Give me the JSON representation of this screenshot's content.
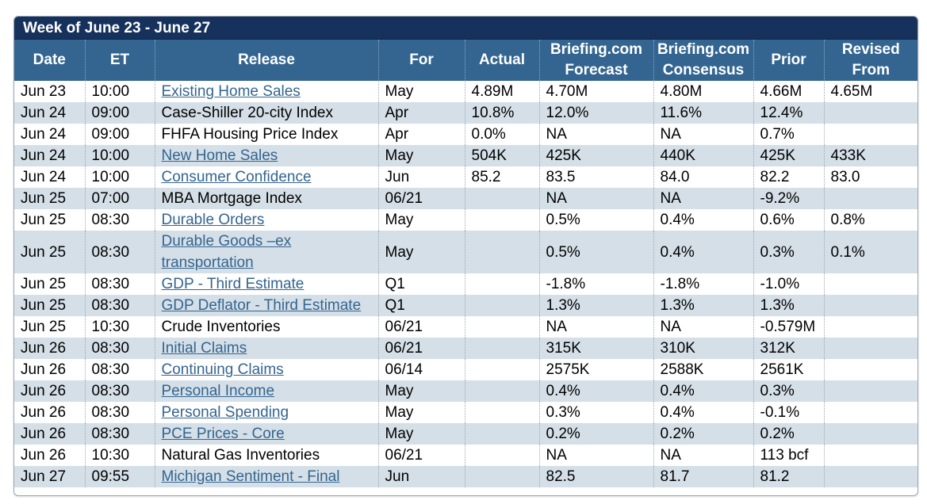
{
  "title": "Week of June 23 - June 27",
  "columns": {
    "date": "Date",
    "et": "ET",
    "release": "Release",
    "for": "For",
    "actual": "Actual",
    "forecast_l1": "Briefing.com",
    "forecast_l2": "Forecast",
    "consensus_l1": "Briefing.com",
    "consensus_l2": "Consensus",
    "prior": "Prior",
    "revised_l1": "Revised",
    "revised_l2": "From"
  },
  "rows": [
    {
      "date": "Jun 23",
      "et": "10:00",
      "release": "Existing Home Sales",
      "link": true,
      "for": "May",
      "actual": "4.89M",
      "forecast": "4.70M",
      "consensus": "4.80M",
      "prior": "4.66M",
      "revised": "4.65M"
    },
    {
      "date": "Jun 24",
      "et": "09:00",
      "release": "Case-Shiller 20-city Index",
      "link": false,
      "for": "Apr",
      "actual": "10.8%",
      "forecast": "12.0%",
      "consensus": "11.6%",
      "prior": "12.4%",
      "revised": ""
    },
    {
      "date": "Jun 24",
      "et": "09:00",
      "release": "FHFA Housing Price Index",
      "link": false,
      "for": "Apr",
      "actual": "0.0%",
      "forecast": "NA",
      "consensus": "NA",
      "prior": "0.7%",
      "revised": ""
    },
    {
      "date": "Jun 24",
      "et": "10:00",
      "release": "New Home Sales",
      "link": true,
      "for": "May",
      "actual": "504K",
      "forecast": "425K",
      "consensus": "440K",
      "prior": "425K",
      "revised": "433K"
    },
    {
      "date": "Jun 24",
      "et": "10:00",
      "release": "Consumer Confidence",
      "link": true,
      "for": "Jun",
      "actual": "85.2",
      "forecast": "83.5",
      "consensus": "84.0",
      "prior": "82.2",
      "revised": "83.0"
    },
    {
      "date": "Jun 25",
      "et": "07:00",
      "release": "MBA Mortgage Index",
      "link": false,
      "for": "06/21",
      "actual": "",
      "forecast": "NA",
      "consensus": "NA",
      "prior": "-9.2%",
      "revised": ""
    },
    {
      "date": "Jun 25",
      "et": "08:30",
      "release": "Durable Orders",
      "link": true,
      "for": "May",
      "actual": "",
      "forecast": "0.5%",
      "consensus": "0.4%",
      "prior": "0.6%",
      "revised": "0.8%"
    },
    {
      "date": "Jun 25",
      "et": "08:30",
      "release": "Durable Goods –ex transportation",
      "link": true,
      "for": "May",
      "actual": "",
      "forecast": "0.5%",
      "consensus": "0.4%",
      "prior": "0.3%",
      "revised": "0.1%"
    },
    {
      "date": "Jun 25",
      "et": "08:30",
      "release": "GDP - Third Estimate",
      "link": true,
      "for": "Q1",
      "actual": "",
      "forecast": "-1.8%",
      "consensus": "-1.8%",
      "prior": "-1.0%",
      "revised": ""
    },
    {
      "date": "Jun 25",
      "et": "08:30",
      "release": "GDP Deflator - Third Estimate",
      "link": true,
      "for": "Q1",
      "actual": "",
      "forecast": "1.3%",
      "consensus": "1.3%",
      "prior": "1.3%",
      "revised": ""
    },
    {
      "date": "Jun 25",
      "et": "10:30",
      "release": "Crude Inventories",
      "link": false,
      "for": "06/21",
      "actual": "",
      "forecast": "NA",
      "consensus": "NA",
      "prior": "-0.579M",
      "revised": ""
    },
    {
      "date": "Jun 26",
      "et": "08:30",
      "release": "Initial Claims",
      "link": true,
      "for": "06/21",
      "actual": "",
      "forecast": "315K",
      "consensus": "310K",
      "prior": "312K",
      "revised": ""
    },
    {
      "date": "Jun 26",
      "et": "08:30",
      "release": "Continuing Claims",
      "link": true,
      "for": "06/14",
      "actual": "",
      "forecast": "2575K",
      "consensus": "2588K",
      "prior": "2561K",
      "revised": ""
    },
    {
      "date": "Jun 26",
      "et": "08:30",
      "release": "Personal Income",
      "link": true,
      "for": "May",
      "actual": "",
      "forecast": "0.4%",
      "consensus": "0.4%",
      "prior": "0.3%",
      "revised": ""
    },
    {
      "date": "Jun 26",
      "et": "08:30",
      "release": "Personal Spending",
      "link": true,
      "for": "May",
      "actual": "",
      "forecast": "0.3%",
      "consensus": "0.4%",
      "prior": "-0.1%",
      "revised": ""
    },
    {
      "date": "Jun 26",
      "et": "08:30",
      "release": "PCE Prices - Core",
      "link": true,
      "for": "May",
      "actual": "",
      "forecast": "0.2%",
      "consensus": "0.2%",
      "prior": "0.2%",
      "revised": ""
    },
    {
      "date": "Jun 26",
      "et": "10:30",
      "release": "Natural Gas Inventories",
      "link": false,
      "for": "06/21",
      "actual": "",
      "forecast": "NA",
      "consensus": "NA",
      "prior": "113 bcf",
      "revised": ""
    },
    {
      "date": "Jun 27",
      "et": "09:55",
      "release": "Michigan Sentiment - Final",
      "link": true,
      "for": "Jun",
      "actual": "",
      "forecast": "82.5",
      "consensus": "81.7",
      "prior": "81.2",
      "revised": ""
    }
  ],
  "colors": {
    "title_bar": "#16325c",
    "header": "#346590",
    "alt_row": "#d5dfe7",
    "link": "#346590"
  }
}
